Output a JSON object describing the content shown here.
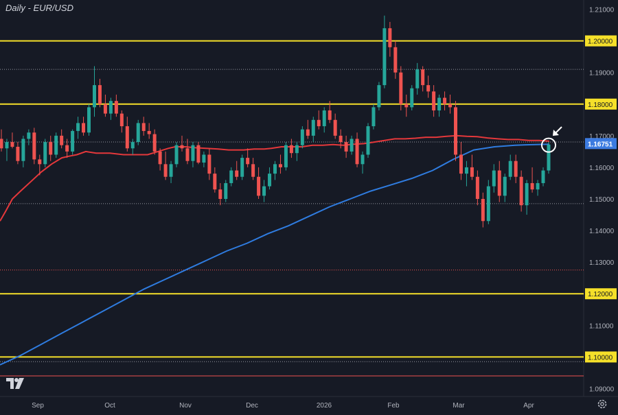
{
  "chart_title": "Daily - EUR/USD",
  "logo": "TV",
  "colors": {
    "background": "#161a25",
    "bull": "#26a69a",
    "bear": "#ef5350",
    "ma_red": "#e5383b",
    "ma_blue": "#2f7ce0",
    "level_yellow": "#f5e02a",
    "grid": "#2a2e39",
    "axis_text": "#b2b5be",
    "price_label_bg": "#3c7be0"
  },
  "chart_data": {
    "type": "candlestick",
    "title": "Daily - EUR/USD",
    "ylim": [
      1.0875,
      1.2125
    ],
    "y_ticks": [
      "1.21000",
      "1.20000",
      "1.19000",
      "1.18000",
      "1.17000",
      "1.16000",
      "1.15000",
      "1.14000",
      "1.13000",
      "1.12000",
      "1.11000",
      "1.10000",
      "1.09000"
    ],
    "x_ticks": [
      "Sep",
      "Oct",
      "Nov",
      "Dec",
      "2026",
      "Feb",
      "Mar",
      "Apr"
    ],
    "current_price": "1.16751",
    "levels": [
      {
        "price": 1.2,
        "label": "1.20000",
        "style": "solid",
        "color": "#f5e02a"
      },
      {
        "price": 1.18,
        "label": "1.18000",
        "style": "solid",
        "color": "#f5e02a"
      },
      {
        "price": 1.12,
        "label": "1.12000",
        "style": "solid",
        "color": "#f5e02a"
      },
      {
        "price": 1.1,
        "label": "1.10000",
        "style": "solid",
        "color": "#f5e02a"
      },
      {
        "price": 1.191,
        "style": "dotted",
        "color": "#9598a1"
      },
      {
        "price": 1.168,
        "style": "dotted",
        "color": "#9598a1"
      },
      {
        "price": 1.1485,
        "style": "dotted",
        "color": "#9598a1"
      },
      {
        "price": 1.0985,
        "style": "dotted",
        "color": "#9598a1"
      },
      {
        "price": 1.1275,
        "style": "dotted",
        "color": "#ef5350"
      },
      {
        "price": 1.094,
        "style": "solid",
        "color": "#ef5350"
      }
    ],
    "series": [
      {
        "name": "",
        "color": "#e5383b",
        "points": [
          [
            0,
            1.143
          ],
          [
            8,
            1.146
          ],
          [
            18,
            1.15
          ],
          [
            30,
            1.1525
          ],
          [
            45,
            1.1555
          ],
          [
            60,
            1.1585
          ],
          [
            75,
            1.161
          ],
          [
            90,
            1.163
          ],
          [
            100,
            1.1635
          ],
          [
            112,
            1.164
          ],
          [
            125,
            1.165
          ],
          [
            140,
            1.1645
          ],
          [
            160,
            1.1645
          ],
          [
            180,
            1.164
          ],
          [
            200,
            1.164
          ],
          [
            215,
            1.164
          ],
          [
            230,
            1.165
          ],
          [
            245,
            1.166
          ],
          [
            255,
            1.1665
          ],
          [
            270,
            1.1665
          ],
          [
            285,
            1.1662
          ],
          [
            300,
            1.166
          ],
          [
            318,
            1.1658
          ],
          [
            333,
            1.1655
          ],
          [
            340,
            1.1655
          ],
          [
            355,
            1.1655
          ],
          [
            370,
            1.1658
          ],
          [
            385,
            1.1658
          ],
          [
            395,
            1.166
          ],
          [
            410,
            1.1665
          ],
          [
            425,
            1.1665
          ],
          [
            440,
            1.1665
          ],
          [
            455,
            1.167
          ],
          [
            470,
            1.167
          ],
          [
            485,
            1.1672
          ],
          [
            500,
            1.167
          ],
          [
            515,
            1.1673
          ],
          [
            530,
            1.1675
          ],
          [
            545,
            1.168
          ],
          [
            560,
            1.1685
          ],
          [
            575,
            1.169
          ],
          [
            590,
            1.169
          ],
          [
            605,
            1.1692
          ],
          [
            620,
            1.1695
          ],
          [
            635,
            1.1695
          ],
          [
            650,
            1.1698
          ],
          [
            665,
            1.17
          ],
          [
            680,
            1.1698
          ],
          [
            695,
            1.1697
          ],
          [
            710,
            1.1693
          ],
          [
            725,
            1.169
          ],
          [
            740,
            1.1688
          ],
          [
            755,
            1.1688
          ],
          [
            770,
            1.1685
          ],
          [
            785,
            1.1685
          ],
          [
            800,
            1.1683
          ]
        ]
      },
      {
        "name": "",
        "color": "#2f7ce0",
        "points": [
          [
            0,
            1.0975
          ],
          [
            30,
            1.1005
          ],
          [
            60,
            1.104
          ],
          [
            90,
            1.1075
          ],
          [
            120,
            1.111
          ],
          [
            150,
            1.1145
          ],
          [
            180,
            1.118
          ],
          [
            210,
            1.1215
          ],
          [
            240,
            1.1245
          ],
          [
            270,
            1.1275
          ],
          [
            300,
            1.1305
          ],
          [
            330,
            1.1335
          ],
          [
            360,
            1.136
          ],
          [
            390,
            1.139
          ],
          [
            420,
            1.1415
          ],
          [
            450,
            1.1445
          ],
          [
            480,
            1.1475
          ],
          [
            510,
            1.15
          ],
          [
            540,
            1.1525
          ],
          [
            570,
            1.1545
          ],
          [
            600,
            1.1565
          ],
          [
            630,
            1.159
          ],
          [
            660,
            1.1625
          ],
          [
            690,
            1.1655
          ],
          [
            720,
            1.1665
          ],
          [
            750,
            1.167
          ],
          [
            780,
            1.1672
          ],
          [
            800,
            1.1673
          ]
        ]
      }
    ],
    "ohlc": [
      [
        1.169,
        1.172,
        1.165,
        1.166
      ],
      [
        1.166,
        1.169,
        1.162,
        1.168
      ],
      [
        1.168,
        1.171,
        1.166,
        1.1665
      ],
      [
        1.1665,
        1.168,
        1.161,
        1.162
      ],
      [
        1.162,
        1.17,
        1.16,
        1.169
      ],
      [
        1.169,
        1.172,
        1.167,
        1.171
      ],
      [
        1.171,
        1.1725,
        1.161,
        1.1625
      ],
      [
        1.1625,
        1.164,
        1.1575,
        1.161
      ],
      [
        1.161,
        1.169,
        1.16,
        1.168
      ],
      [
        1.168,
        1.17,
        1.162,
        1.164
      ],
      [
        1.164,
        1.171,
        1.163,
        1.17
      ],
      [
        1.17,
        1.172,
        1.166,
        1.167
      ],
      [
        1.167,
        1.169,
        1.163,
        1.165
      ],
      [
        1.165,
        1.172,
        1.164,
        1.1715
      ],
      [
        1.1715,
        1.176,
        1.169,
        1.174
      ],
      [
        1.174,
        1.176,
        1.17,
        1.171
      ],
      [
        1.171,
        1.18,
        1.17,
        1.179
      ],
      [
        1.179,
        1.192,
        1.176,
        1.186
      ],
      [
        1.186,
        1.188,
        1.179,
        1.18
      ],
      [
        1.18,
        1.183,
        1.176,
        1.177
      ],
      [
        1.177,
        1.182,
        1.175,
        1.181
      ],
      [
        1.181,
        1.183,
        1.176,
        1.177
      ],
      [
        1.177,
        1.178,
        1.171,
        1.173
      ],
      [
        1.173,
        1.176,
        1.165,
        1.166
      ],
      [
        1.166,
        1.169,
        1.164,
        1.168
      ],
      [
        1.168,
        1.175,
        1.167,
        1.174
      ],
      [
        1.174,
        1.176,
        1.17,
        1.1715
      ],
      [
        1.1715,
        1.174,
        1.169,
        1.1705
      ],
      [
        1.1705,
        1.172,
        1.164,
        1.165
      ],
      [
        1.165,
        1.166,
        1.159,
        1.161
      ],
      [
        1.161,
        1.165,
        1.156,
        1.157
      ],
      [
        1.157,
        1.162,
        1.155,
        1.161
      ],
      [
        1.161,
        1.168,
        1.16,
        1.167
      ],
      [
        1.167,
        1.17,
        1.165,
        1.166
      ],
      [
        1.166,
        1.169,
        1.161,
        1.162
      ],
      [
        1.162,
        1.168,
        1.16,
        1.167
      ],
      [
        1.167,
        1.168,
        1.161,
        1.1615
      ],
      [
        1.1615,
        1.165,
        1.16,
        1.164
      ],
      [
        1.164,
        1.166,
        1.156,
        1.158
      ],
      [
        1.158,
        1.16,
        1.152,
        1.153
      ],
      [
        1.153,
        1.155,
        1.148,
        1.15
      ],
      [
        1.15,
        1.156,
        1.149,
        1.155
      ],
      [
        1.155,
        1.16,
        1.154,
        1.159
      ],
      [
        1.159,
        1.162,
        1.156,
        1.157
      ],
      [
        1.157,
        1.164,
        1.156,
        1.163
      ],
      [
        1.163,
        1.166,
        1.16,
        1.161
      ],
      [
        1.161,
        1.163,
        1.156,
        1.157
      ],
      [
        1.157,
        1.16,
        1.15,
        1.151
      ],
      [
        1.151,
        1.156,
        1.149,
        1.154
      ],
      [
        1.154,
        1.16,
        1.153,
        1.158
      ],
      [
        1.158,
        1.162,
        1.156,
        1.161
      ],
      [
        1.161,
        1.164,
        1.158,
        1.16
      ],
      [
        1.16,
        1.168,
        1.159,
        1.167
      ],
      [
        1.167,
        1.169,
        1.163,
        1.1645
      ],
      [
        1.1645,
        1.168,
        1.162,
        1.167
      ],
      [
        1.167,
        1.173,
        1.166,
        1.172
      ],
      [
        1.172,
        1.175,
        1.169,
        1.17
      ],
      [
        1.17,
        1.176,
        1.168,
        1.175
      ],
      [
        1.175,
        1.178,
        1.172,
        1.173
      ],
      [
        1.173,
        1.179,
        1.171,
        1.178
      ],
      [
        1.178,
        1.181,
        1.174,
        1.175
      ],
      [
        1.175,
        1.177,
        1.169,
        1.17
      ],
      [
        1.17,
        1.172,
        1.166,
        1.168
      ],
      [
        1.168,
        1.17,
        1.163,
        1.165
      ],
      [
        1.165,
        1.17,
        1.164,
        1.169
      ],
      [
        1.169,
        1.171,
        1.16,
        1.161
      ],
      [
        1.161,
        1.165,
        1.158,
        1.164
      ],
      [
        1.164,
        1.174,
        1.163,
        1.173
      ],
      [
        1.173,
        1.18,
        1.172,
        1.179
      ],
      [
        1.179,
        1.187,
        1.178,
        1.186
      ],
      [
        1.186,
        1.208,
        1.185,
        1.204
      ],
      [
        1.204,
        1.206,
        1.195,
        1.198
      ],
      [
        1.198,
        1.2,
        1.188,
        1.19
      ],
      [
        1.19,
        1.192,
        1.178,
        1.18
      ],
      [
        1.18,
        1.183,
        1.176,
        1.179
      ],
      [
        1.179,
        1.186,
        1.178,
        1.185
      ],
      [
        1.185,
        1.193,
        1.183,
        1.191
      ],
      [
        1.191,
        1.192,
        1.184,
        1.186
      ],
      [
        1.186,
        1.189,
        1.182,
        1.184
      ],
      [
        1.184,
        1.186,
        1.176,
        1.178
      ],
      [
        1.178,
        1.183,
        1.176,
        1.182
      ],
      [
        1.182,
        1.184,
        1.178,
        1.18
      ],
      [
        1.18,
        1.183,
        1.177,
        1.179
      ],
      [
        1.179,
        1.181,
        1.162,
        1.164
      ],
      [
        1.164,
        1.168,
        1.156,
        1.158
      ],
      [
        1.158,
        1.162,
        1.154,
        1.16
      ],
      [
        1.16,
        1.164,
        1.156,
        1.157
      ],
      [
        1.157,
        1.159,
        1.148,
        1.15
      ],
      [
        1.15,
        1.152,
        1.141,
        1.143
      ],
      [
        1.143,
        1.156,
        1.142,
        1.154
      ],
      [
        1.154,
        1.161,
        1.152,
        1.159
      ],
      [
        1.159,
        1.162,
        1.149,
        1.151
      ],
      [
        1.151,
        1.158,
        1.149,
        1.157
      ],
      [
        1.157,
        1.164,
        1.156,
        1.162
      ],
      [
        1.162,
        1.164,
        1.155,
        1.157
      ],
      [
        1.157,
        1.159,
        1.146,
        1.148
      ],
      [
        1.148,
        1.156,
        1.145,
        1.155
      ],
      [
        1.155,
        1.16,
        1.152,
        1.153
      ],
      [
        1.153,
        1.156,
        1.151,
        1.155
      ],
      [
        1.155,
        1.16,
        1.154,
        1.159
      ],
      [
        1.159,
        1.168,
        1.158,
        1.1672
      ]
    ]
  }
}
